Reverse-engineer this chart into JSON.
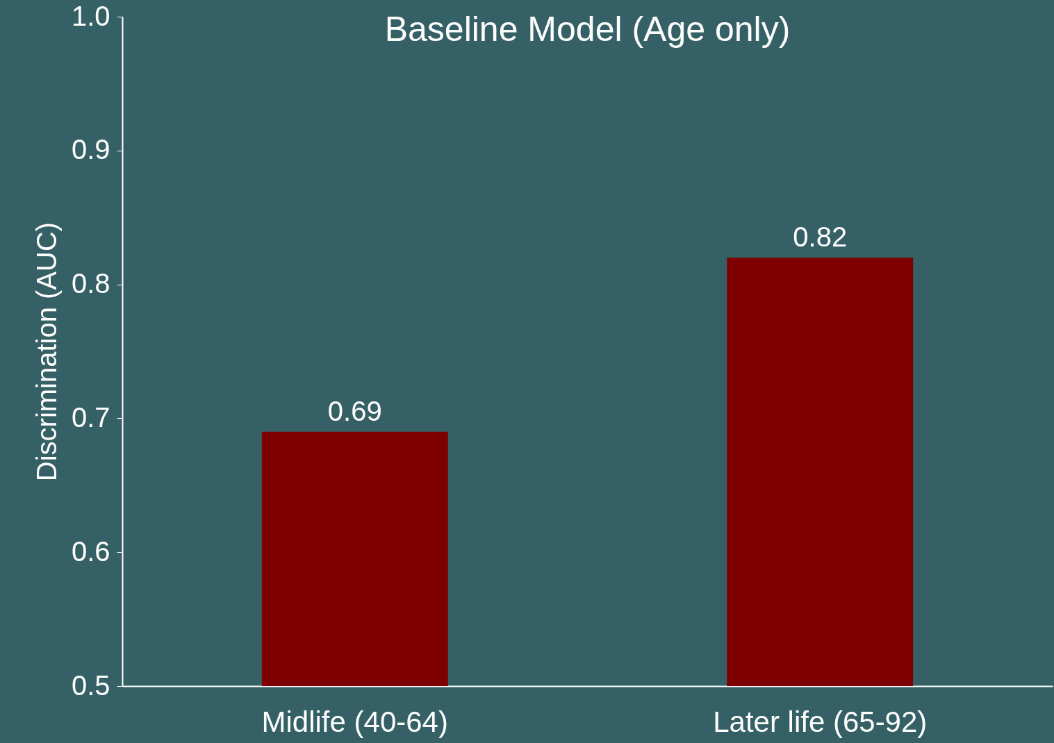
{
  "chart_data": {
    "type": "bar",
    "title": "Baseline Model (Age only)",
    "ylabel": "Discrimination (AUC)",
    "categories": [
      "Midlife (40-64)",
      "Later life (65-92)"
    ],
    "values": [
      0.69,
      0.82
    ],
    "color": "#7f0000",
    "ylim": [
      0.5,
      1.0
    ],
    "yticks": [
      0.5,
      0.6,
      0.7,
      0.8,
      0.9,
      {
        "value": 1.0,
        "label": "1.0"
      }
    ],
    "data_labels": true,
    "grid": false
  }
}
